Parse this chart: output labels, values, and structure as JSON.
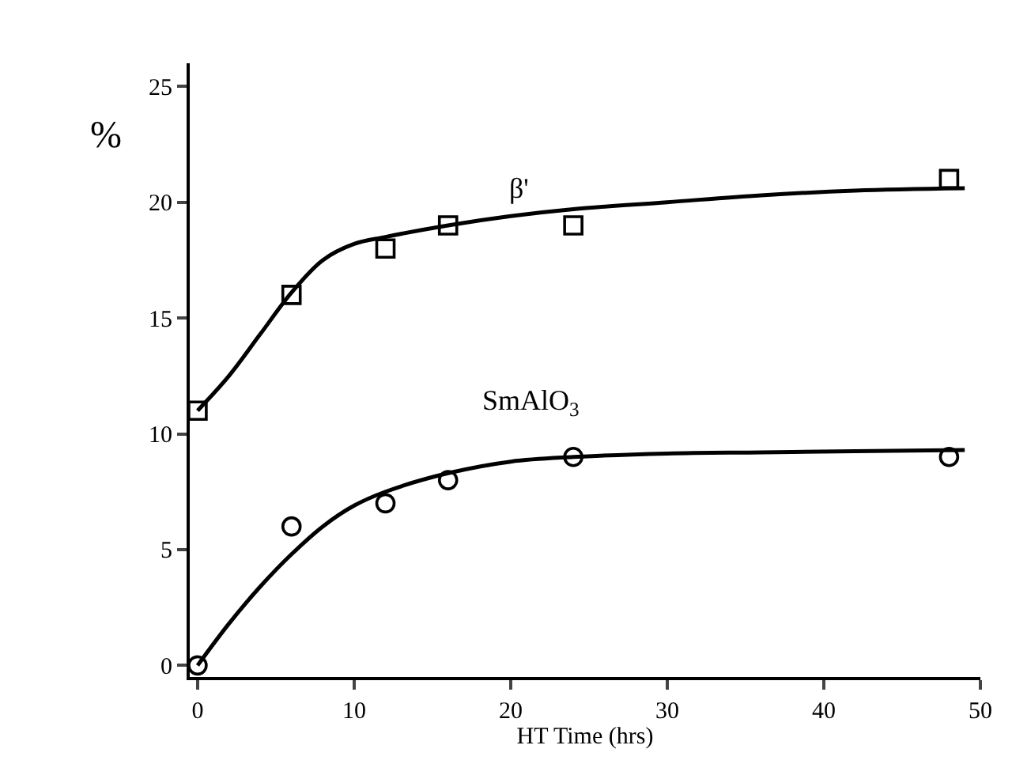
{
  "chart_data": {
    "type": "scatter",
    "xlabel": "HT Time (hrs)",
    "ylabel": "%",
    "xlim": [
      -0.5,
      50
    ],
    "xticks": [
      0,
      10,
      20,
      30,
      40,
      50
    ],
    "ylim": [
      -0.5,
      26
    ],
    "yticks": [
      0,
      5,
      10,
      15,
      20,
      25
    ],
    "series": [
      {
        "marker": "square",
        "color": "#000000",
        "x": [
          0,
          6,
          12,
          16,
          24,
          48
        ],
        "values": [
          11,
          16,
          18,
          19,
          19,
          21
        ]
      },
      {
        "marker": "circle",
        "color": "#000000",
        "x": [
          0,
          6,
          12,
          16,
          24,
          48
        ],
        "values": [
          0,
          6,
          7,
          8,
          9,
          9
        ]
      },
      {
        "type": "line",
        "name": "β'",
        "color": "#000000",
        "x": [
          0,
          2,
          4,
          6,
          8,
          10,
          12,
          16,
          20,
          24,
          30,
          36,
          42,
          49
        ],
        "values": [
          11,
          12.5,
          14.3,
          16.1,
          17.5,
          18.2,
          18.5,
          19.0,
          19.4,
          19.7,
          20.0,
          20.3,
          20.5,
          20.6
        ]
      },
      {
        "type": "line",
        "name": "SmAlO$_{3}$",
        "color": "#000000",
        "x": [
          0,
          2,
          4,
          6,
          8,
          10,
          12,
          16,
          20,
          24,
          30,
          36,
          42,
          49
        ],
        "values": [
          0,
          1.8,
          3.4,
          4.8,
          6.0,
          6.9,
          7.5,
          8.3,
          8.8,
          9.0,
          9.15,
          9.2,
          9.25,
          9.3
        ]
      }
    ]
  }
}
